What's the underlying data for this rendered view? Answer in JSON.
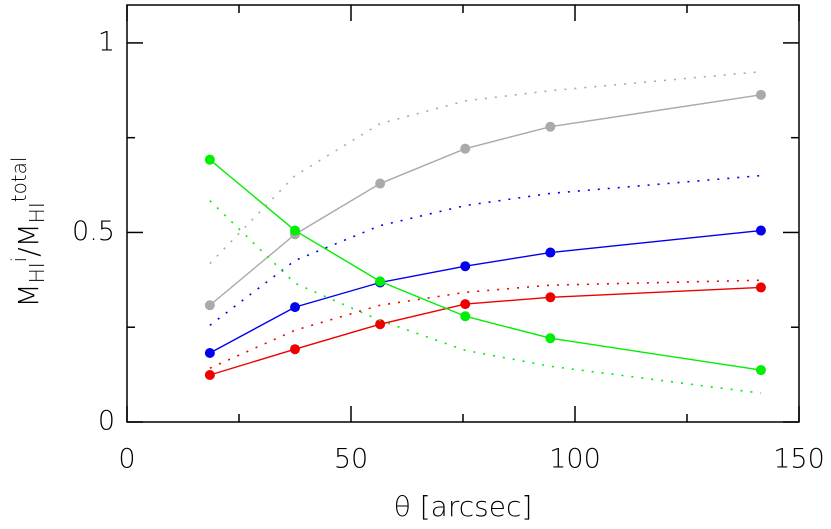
{
  "chart_data": {
    "type": "line",
    "xlabel": "θ [arcsec]",
    "ylabel": [
      {
        "text": "M"
      },
      {
        "text": "HI",
        "shift": "sub"
      },
      {
        "text": "i",
        "shift": "super"
      },
      {
        "text": "/"
      },
      {
        "text": "M"
      },
      {
        "text": "HI",
        "shift": "sub"
      },
      {
        "text": "total",
        "shift": "super"
      }
    ],
    "x": [
      18.5,
      37.5,
      56.5,
      75.5,
      94.5,
      141.5
    ],
    "xlim": [
      0,
      150
    ],
    "xticks": [
      0,
      50,
      100,
      150
    ],
    "xminor": [
      25,
      75,
      125
    ],
    "ylim": [
      0,
      1.1
    ],
    "yticks": [
      0,
      0.5,
      1
    ],
    "yminor": [
      0.25,
      0.75
    ],
    "series": [
      {
        "color": "#aaaaaa",
        "style": "solid",
        "markers": true,
        "values": [
          0.308,
          0.495,
          0.629,
          0.721,
          0.779,
          0.863
        ]
      },
      {
        "color": "#0000ee",
        "style": "solid",
        "markers": true,
        "values": [
          0.182,
          0.303,
          0.368,
          0.411,
          0.447,
          0.505
        ]
      },
      {
        "color": "#ee0000",
        "style": "solid",
        "markers": true,
        "values": [
          0.124,
          0.192,
          0.258,
          0.311,
          0.329,
          0.355
        ]
      },
      {
        "color": "#00ee00",
        "style": "solid",
        "markers": true,
        "values": [
          0.692,
          0.505,
          0.371,
          0.279,
          0.221,
          0.137
        ]
      },
      {
        "color": "#aaaaaa",
        "style": "dotted",
        "markers": false,
        "values": [
          0.418,
          0.65,
          0.787,
          0.847,
          0.874,
          0.924
        ]
      },
      {
        "color": "#0000ee",
        "style": "dotted",
        "markers": false,
        "values": [
          0.255,
          0.426,
          0.518,
          0.571,
          0.603,
          0.65
        ]
      },
      {
        "color": "#ee0000",
        "style": "dotted",
        "markers": false,
        "values": [
          0.142,
          0.242,
          0.308,
          0.342,
          0.361,
          0.374
        ]
      },
      {
        "color": "#00ee00",
        "style": "dotted",
        "markers": false,
        "values": [
          0.584,
          0.366,
          0.268,
          0.189,
          0.147,
          0.076
        ]
      }
    ]
  }
}
